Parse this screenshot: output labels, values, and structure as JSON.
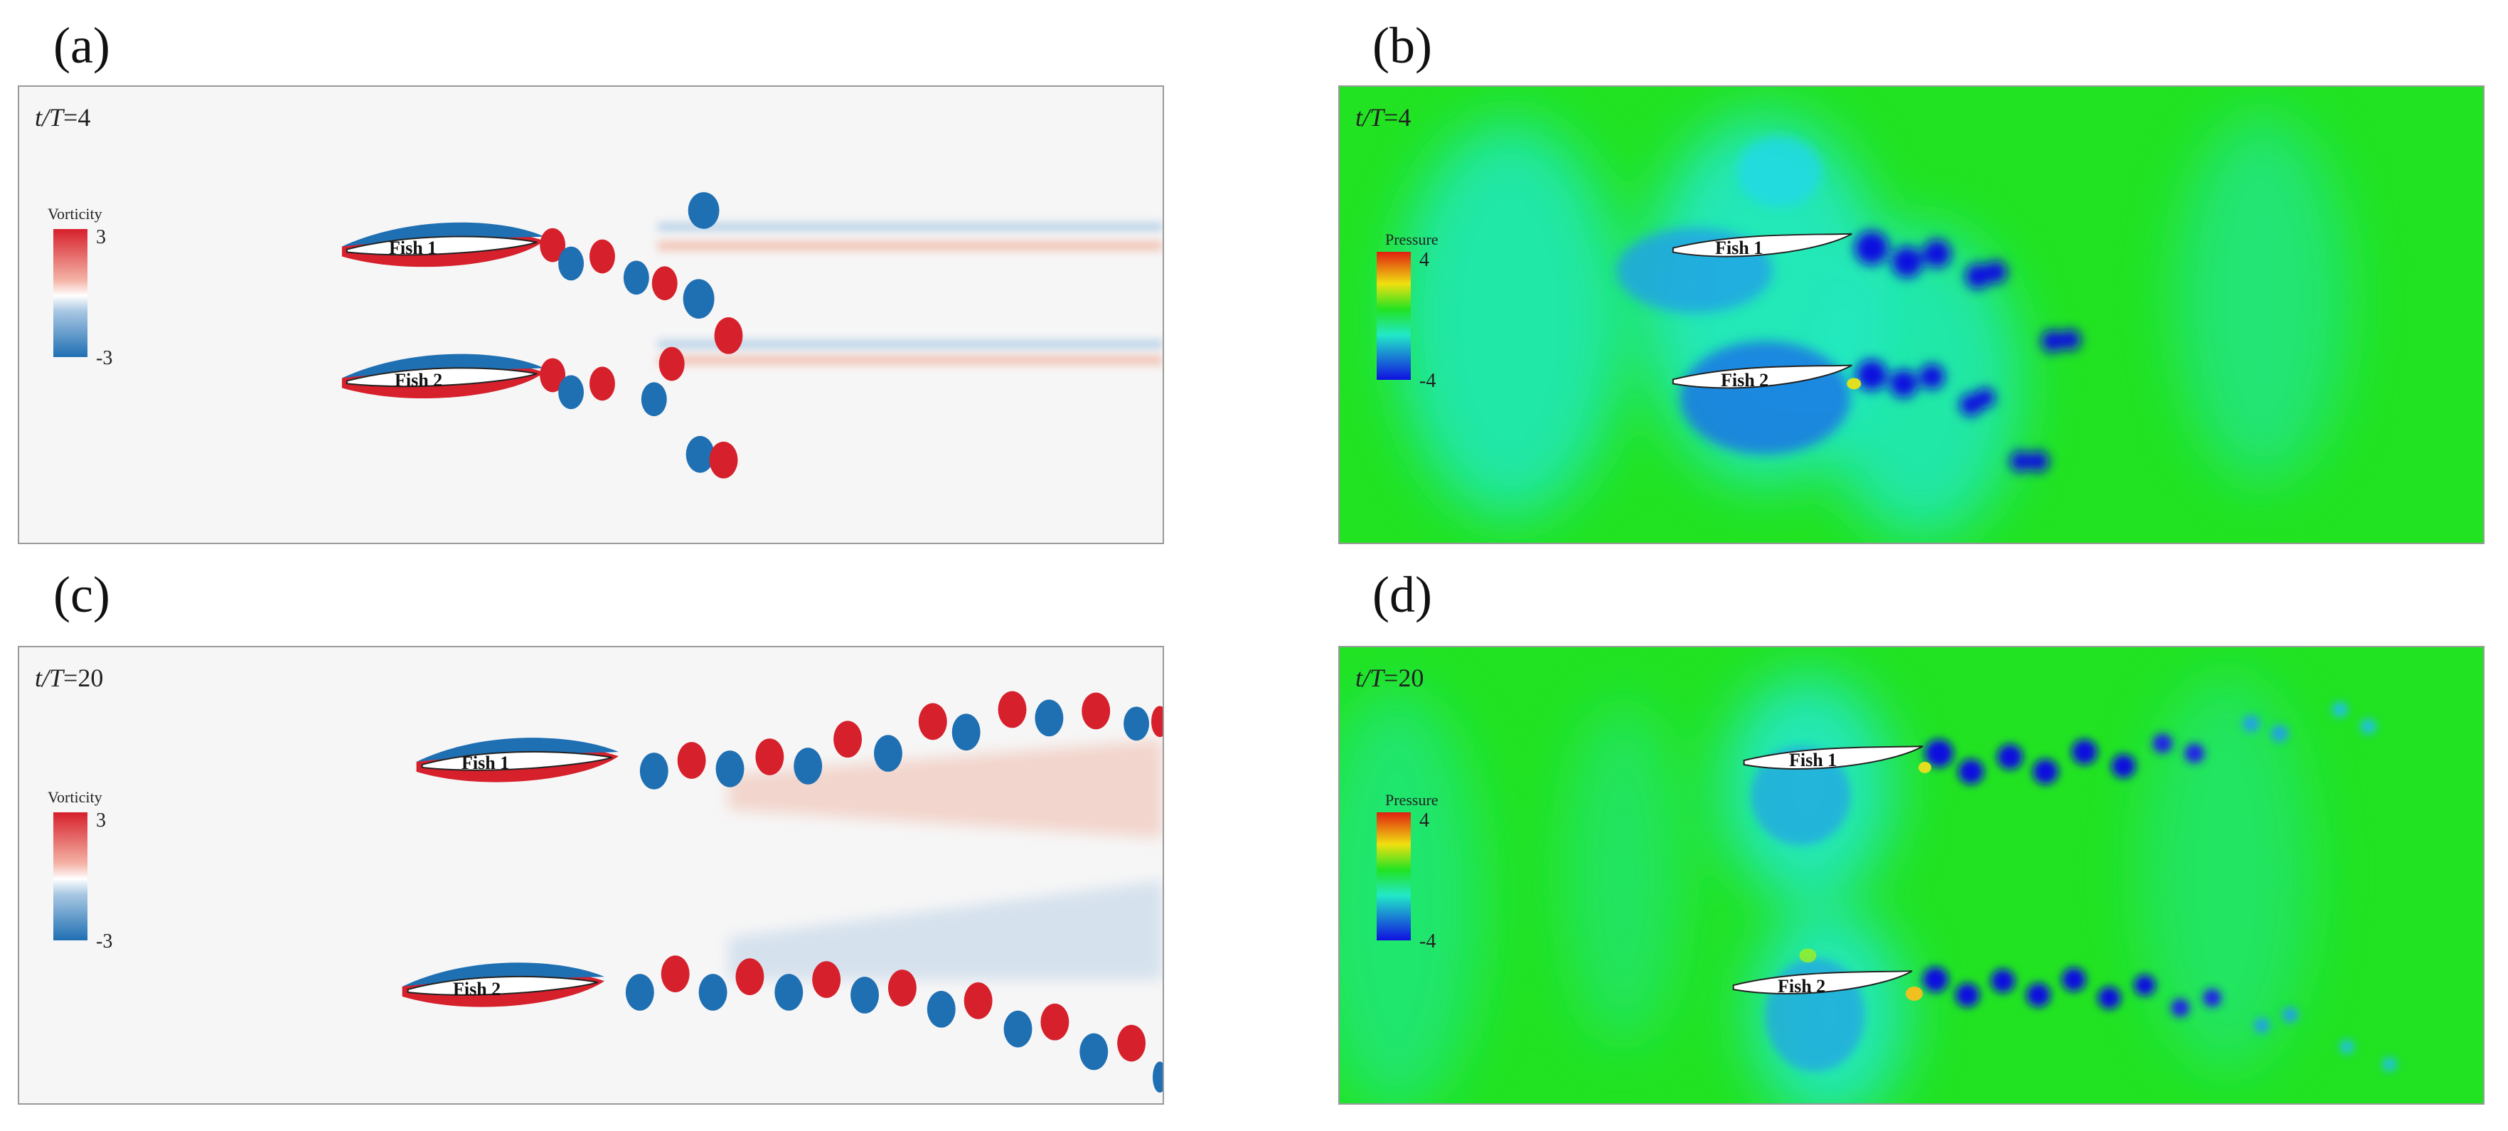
{
  "panels": [
    {
      "id": "a",
      "label": "(a)",
      "time_label_prefix": "t/T",
      "time_value": "=4",
      "legend": {
        "title": "Vorticity",
        "max": "3",
        "min": "-3"
      },
      "fish": [
        {
          "label": "Fish 1"
        },
        {
          "label": "Fish 2"
        }
      ]
    },
    {
      "id": "b",
      "label": "(b)",
      "time_label_prefix": "t/T",
      "time_value": "=4",
      "legend": {
        "title": "Pressure",
        "max": "4",
        "min": "-4"
      },
      "fish": [
        {
          "label": "Fish 1"
        },
        {
          "label": "Fish 2"
        }
      ]
    },
    {
      "id": "c",
      "label": "(c)",
      "time_label_prefix": "t/T",
      "time_value": "=20",
      "legend": {
        "title": "Vorticity",
        "max": "3",
        "min": "-3"
      },
      "fish": [
        {
          "label": "Fish 1"
        },
        {
          "label": "Fish 2"
        }
      ]
    },
    {
      "id": "d",
      "label": "(d)",
      "time_label_prefix": "t/T",
      "time_value": "=20",
      "legend": {
        "title": "Pressure",
        "max": "4",
        "min": "-4"
      },
      "fish": [
        {
          "label": "Fish 1"
        },
        {
          "label": "Fish 2"
        }
      ]
    }
  ],
  "colors": {
    "vorticity_positive": "#d6202b",
    "vorticity_negative": "#1f6fb3",
    "vorticity_background": "#f6f6f6",
    "pressure_background": "#22e322",
    "pressure_low": "#1010e0",
    "pressure_mid": "#22e8c8"
  }
}
